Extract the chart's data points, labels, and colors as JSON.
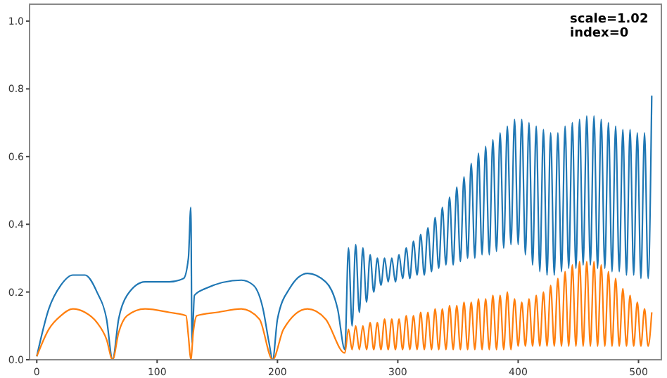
{
  "chart_data": {
    "type": "line",
    "xlim": [
      -6,
      519
    ],
    "ylim": [
      0,
      1.05
    ],
    "xticks": [
      0,
      100,
      200,
      300,
      400,
      500
    ],
    "yticks": [
      {
        "value": 0,
        "label": "0.0"
      },
      0.2,
      0.4,
      0.6,
      0.8,
      {
        "value": 1,
        "label": "1.0"
      }
    ],
    "grid": false,
    "marker": "none",
    "line_style": "solid",
    "annotations": [
      "scale=1.02",
      "index=0"
    ],
    "series": [
      {
        "color": "#1f77b4",
        "x": [
          0,
          10,
          20,
          30,
          40,
          50,
          58,
          63,
          68,
          75,
          90,
          110,
          122,
          126,
          128,
          129,
          131,
          140,
          170,
          180,
          188,
          193,
          196,
          200,
          210,
          225,
          240,
          250,
          256,
          259,
          262,
          265,
          268,
          271,
          274,
          277,
          280,
          283,
          286,
          289,
          292,
          295,
          298,
          301,
          304,
          307,
          310,
          313,
          316,
          319,
          322,
          325,
          328,
          331,
          334,
          337,
          340,
          343,
          346,
          349,
          352,
          355,
          358,
          361,
          364,
          367,
          370,
          373,
          376,
          379,
          382,
          385,
          388,
          391,
          394,
          397,
          400,
          403,
          406,
          409,
          412,
          415,
          418,
          421,
          424,
          427,
          430,
          433,
          436,
          439,
          442,
          445,
          448,
          451,
          454,
          457,
          460,
          463,
          466,
          469,
          472,
          475,
          478,
          481,
          484,
          487,
          490,
          493,
          496,
          499,
          502,
          505,
          508,
          511
        ],
        "values": [
          0.01,
          0.15,
          0.22,
          0.25,
          0.25,
          0.2,
          0.12,
          0.0,
          0.12,
          0.19,
          0.23,
          0.23,
          0.24,
          0.3,
          0.45,
          0.05,
          0.19,
          0.21,
          0.235,
          0.22,
          0.15,
          0.05,
          0.0,
          0.12,
          0.21,
          0.255,
          0.23,
          0.15,
          0.03,
          0.33,
          0.1,
          0.34,
          0.14,
          0.33,
          0.17,
          0.31,
          0.2,
          0.3,
          0.22,
          0.3,
          0.23,
          0.3,
          0.23,
          0.31,
          0.24,
          0.33,
          0.24,
          0.35,
          0.25,
          0.37,
          0.25,
          0.39,
          0.26,
          0.42,
          0.27,
          0.45,
          0.28,
          0.48,
          0.28,
          0.51,
          0.29,
          0.54,
          0.3,
          0.58,
          0.3,
          0.61,
          0.31,
          0.63,
          0.31,
          0.65,
          0.32,
          0.67,
          0.33,
          0.69,
          0.34,
          0.71,
          0.34,
          0.71,
          0.31,
          0.7,
          0.28,
          0.69,
          0.26,
          0.68,
          0.25,
          0.67,
          0.25,
          0.67,
          0.26,
          0.69,
          0.27,
          0.7,
          0.27,
          0.71,
          0.28,
          0.72,
          0.28,
          0.72,
          0.27,
          0.71,
          0.27,
          0.7,
          0.26,
          0.69,
          0.26,
          0.68,
          0.25,
          0.68,
          0.25,
          0.67,
          0.24,
          0.67,
          0.24,
          0.78
        ]
      },
      {
        "color": "#ff7f0e",
        "x": [
          0,
          10,
          20,
          30,
          40,
          50,
          58,
          63,
          68,
          75,
          90,
          110,
          124,
          126,
          128,
          130,
          133,
          150,
          170,
          185,
          196,
          205,
          225,
          240,
          256,
          259,
          262,
          265,
          268,
          271,
          274,
          277,
          280,
          283,
          286,
          289,
          292,
          295,
          298,
          301,
          304,
          307,
          310,
          313,
          316,
          319,
          322,
          325,
          328,
          331,
          334,
          337,
          340,
          343,
          346,
          349,
          352,
          355,
          358,
          361,
          364,
          367,
          370,
          373,
          376,
          379,
          382,
          385,
          388,
          391,
          394,
          397,
          400,
          403,
          406,
          409,
          412,
          415,
          418,
          421,
          424,
          427,
          430,
          433,
          436,
          439,
          442,
          445,
          448,
          451,
          454,
          457,
          460,
          463,
          466,
          469,
          472,
          475,
          478,
          481,
          484,
          487,
          490,
          493,
          496,
          499,
          502,
          505,
          508,
          511
        ],
        "values": [
          0.01,
          0.09,
          0.13,
          0.15,
          0.14,
          0.11,
          0.06,
          0.0,
          0.08,
          0.13,
          0.15,
          0.14,
          0.13,
          0.07,
          0.0,
          0.08,
          0.13,
          0.14,
          0.15,
          0.12,
          0.0,
          0.09,
          0.15,
          0.12,
          0.02,
          0.09,
          0.03,
          0.1,
          0.03,
          0.1,
          0.03,
          0.11,
          0.03,
          0.11,
          0.03,
          0.12,
          0.03,
          0.12,
          0.03,
          0.12,
          0.03,
          0.13,
          0.03,
          0.13,
          0.03,
          0.14,
          0.03,
          0.14,
          0.03,
          0.15,
          0.03,
          0.15,
          0.03,
          0.16,
          0.03,
          0.16,
          0.03,
          0.17,
          0.03,
          0.17,
          0.03,
          0.18,
          0.03,
          0.18,
          0.03,
          0.19,
          0.03,
          0.19,
          0.03,
          0.2,
          0.03,
          0.18,
          0.04,
          0.17,
          0.04,
          0.18,
          0.04,
          0.19,
          0.04,
          0.2,
          0.04,
          0.22,
          0.04,
          0.24,
          0.04,
          0.26,
          0.04,
          0.28,
          0.04,
          0.29,
          0.04,
          0.29,
          0.04,
          0.29,
          0.04,
          0.28,
          0.04,
          0.26,
          0.04,
          0.24,
          0.04,
          0.21,
          0.04,
          0.19,
          0.04,
          0.17,
          0.04,
          0.15,
          0.04,
          0.14
        ]
      }
    ]
  }
}
